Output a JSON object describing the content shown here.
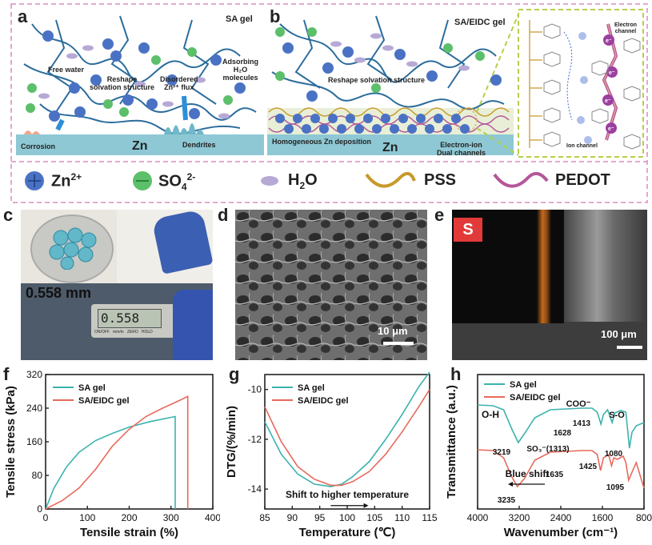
{
  "panel_labels": {
    "a": "a",
    "b": "b",
    "c": "c",
    "d": "d",
    "e": "e",
    "f": "f",
    "g": "g",
    "h": "h"
  },
  "schematic_a": {
    "title": "SA gel",
    "labels": {
      "free_water": "Free water",
      "reshape": "Reshape\nsolvation structure",
      "disordered": "Disordered\nZn²⁺ flux",
      "adsorbing": "Adsorbing\nH₂O\nmolecules",
      "corrosion": "Corrosion",
      "zn": "Zn",
      "dendrites": "Dendrites"
    }
  },
  "schematic_b": {
    "title": "SA/EIDC gel",
    "labels": {
      "reshape": "Reshape solvation structure",
      "homogeneous": "Homogeneous Zn deposition",
      "zn": "Zn",
      "dual": "Electron-ion\nDual channels",
      "electron_channel": "Electron\nchannel",
      "ion_channel": "Ion channel"
    }
  },
  "legend": [
    {
      "key": "zn",
      "label": "Zn",
      "sup": "2+"
    },
    {
      "key": "so4",
      "label": "SO",
      "sub": "4",
      "sup": "2-"
    },
    {
      "key": "h2o",
      "label": "H",
      "sub": "2",
      "rest": "O"
    },
    {
      "key": "pss",
      "label": "PSS"
    },
    {
      "key": "pedot",
      "label": "PEDOT"
    }
  ],
  "photo_c": {
    "thickness": "0.558 mm",
    "display": "0.558",
    "buttons": "ON/OFF   mm/in   ZERO   HOLD"
  },
  "photo_d": {
    "scale": "10 μm"
  },
  "photo_e": {
    "element": "S",
    "scale": "100 μm"
  },
  "colors": {
    "teal": "#3bb3ae",
    "salmon": "#e86a5c",
    "dashed": "#d98bc0",
    "zn_blue": "#4a72c4",
    "so4_green": "#5cbf6a",
    "h2o": "#b7a9d6",
    "pss": "#c79a2b",
    "pedot": "#b5569a"
  },
  "chart_data": [
    {
      "id": "f",
      "type": "line",
      "xlabel": "Tensile strain (%)",
      "ylabel": "Tensile stress (kPa)",
      "xlim": [
        0,
        400
      ],
      "ylim": [
        0,
        320
      ],
      "xticks": [
        0,
        100,
        200,
        300,
        400
      ],
      "yticks": [
        0,
        80,
        160,
        240,
        320
      ],
      "series": [
        {
          "name": "SA gel",
          "color": "#3bb3ae",
          "x": [
            0,
            20,
            50,
            80,
            120,
            160,
            200,
            250,
            300,
            310,
            310
          ],
          "y": [
            0,
            50,
            100,
            135,
            163,
            180,
            195,
            208,
            218,
            220,
            0
          ]
        },
        {
          "name": "SA/EIDC gel",
          "color": "#e86a5c",
          "x": [
            0,
            40,
            80,
            120,
            160,
            200,
            240,
            280,
            320,
            340,
            340
          ],
          "y": [
            0,
            20,
            50,
            95,
            150,
            190,
            220,
            240,
            258,
            268,
            0
          ]
        }
      ]
    },
    {
      "id": "g",
      "type": "line",
      "xlabel": "Temperature (℃)",
      "ylabel": "DTG/(%/min)",
      "xlim": [
        85,
        115
      ],
      "ylim": [
        -14.8,
        -9.4
      ],
      "xticks": [
        85,
        90,
        95,
        100,
        105,
        110,
        115
      ],
      "yticks": [
        -14,
        -12,
        -10
      ],
      "annotation": "Shift to higher temperature",
      "series": [
        {
          "name": "SA gel",
          "color": "#3bb3ae",
          "x": [
            85,
            88,
            91,
            94,
            97,
            99,
            101,
            104,
            107,
            110,
            113,
            115
          ],
          "y": [
            -11.3,
            -12.6,
            -13.4,
            -13.8,
            -13.9,
            -13.8,
            -13.5,
            -12.9,
            -12.0,
            -11.0,
            -9.9,
            -9.3
          ]
        },
        {
          "name": "SA/EIDC gel",
          "color": "#e86a5c",
          "x": [
            85,
            88,
            91,
            94,
            97,
            99,
            101,
            104,
            107,
            110,
            113,
            115
          ],
          "y": [
            -10.7,
            -12.1,
            -13.1,
            -13.6,
            -13.85,
            -13.85,
            -13.7,
            -13.3,
            -12.6,
            -11.7,
            -10.7,
            -10.0
          ]
        }
      ]
    },
    {
      "id": "h",
      "type": "line",
      "xlabel": "Wavenumber (cm⁻¹)",
      "ylabel": "Transmittance (a.u.)",
      "xlim": [
        4000,
        800
      ],
      "reversed_x": true,
      "xticks": [
        4000,
        3200,
        2400,
        1600,
        800
      ],
      "annotations": [
        "O-H",
        "COO⁻",
        "S-O",
        "3219",
        "1628",
        "1413",
        "1080",
        "SO₃⁻(1313)",
        "1425",
        "1635",
        "1095",
        "3235",
        "Blue shift"
      ],
      "series": [
        {
          "name": "SA gel",
          "color": "#3bb3ae"
        },
        {
          "name": "SA/EIDC gel",
          "color": "#e86a5c"
        }
      ]
    }
  ]
}
